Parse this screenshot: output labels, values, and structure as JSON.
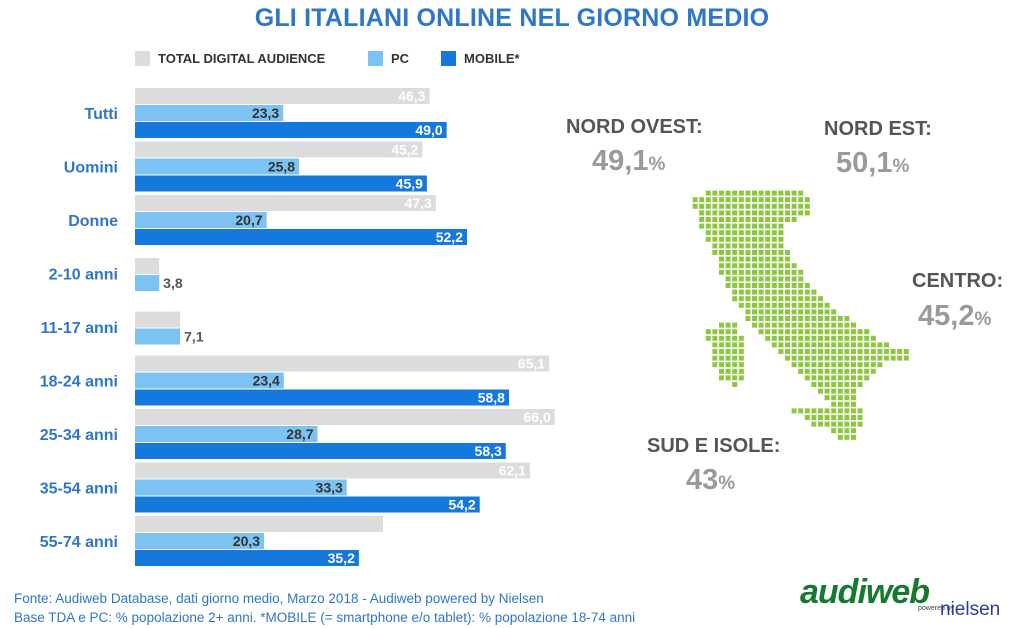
{
  "title": "GLI ITALIANI ONLINE NEL GIORNO MEDIO",
  "colors": {
    "tda": "#dcdcdc",
    "pc": "#7cc3f4",
    "mobile": "#1478dc",
    "map": "#8dc63f"
  },
  "chart_data": {
    "type": "bar",
    "orientation": "horizontal",
    "categories": [
      "Tutti",
      "Uomini",
      "Donne",
      "2-10 anni",
      "11-17 anni",
      "18-24 anni",
      "25-34 anni",
      "35-54 anni",
      "55-74 anni"
    ],
    "series": [
      {
        "name": "TOTAL DIGITAL AUDIENCE",
        "values": [
          46.3,
          45.2,
          47.3,
          3.8,
          7.1,
          65.1,
          66.0,
          62.1,
          39.0
        ],
        "labels": [
          "46,3",
          "45,2",
          "47,3",
          "",
          "",
          "65,1",
          "66,0",
          "62,1",
          ""
        ]
      },
      {
        "name": "PC",
        "values": [
          23.3,
          25.8,
          20.7,
          3.8,
          7.1,
          23.4,
          28.7,
          33.3,
          20.3
        ],
        "labels": [
          "23,3",
          "25,8",
          "20,7",
          "3,8",
          "7,1",
          "23,4",
          "28,7",
          "33,3",
          "20,3"
        ]
      },
      {
        "name": "MOBILE*",
        "values": [
          49.0,
          45.9,
          52.2,
          null,
          null,
          58.8,
          58.3,
          54.2,
          35.2
        ],
        "labels": [
          "49,0",
          "45,9",
          "52,2",
          "",
          "",
          "58,8",
          "58,3",
          "54,2",
          "35,2"
        ]
      }
    ],
    "xlim": [
      0,
      70
    ],
    "legend": "top",
    "grid": false
  },
  "regions": [
    {
      "name": "NORD OVEST:",
      "value": "49,1",
      "unit": "%"
    },
    {
      "name": "NORD EST:",
      "value": "50,1",
      "unit": "%"
    },
    {
      "name": "CENTRO:",
      "value": "45,2",
      "unit": "%"
    },
    {
      "name": "SUD E ISOLE:",
      "value": "43",
      "unit": "%"
    }
  ],
  "footer": {
    "line1": "Fonte: Audiweb Database, dati giorno medio, Marzo 2018 - Audiweb powered by Nielsen",
    "line2": "Base TDA e PC: % popolazione 2+ anni. *MOBILE (= smartphone e/o tablet): % popolazione 18-74 anni"
  },
  "logo": {
    "brand": "audiweb",
    "powered": "powered by",
    "partner": "nielsen"
  }
}
